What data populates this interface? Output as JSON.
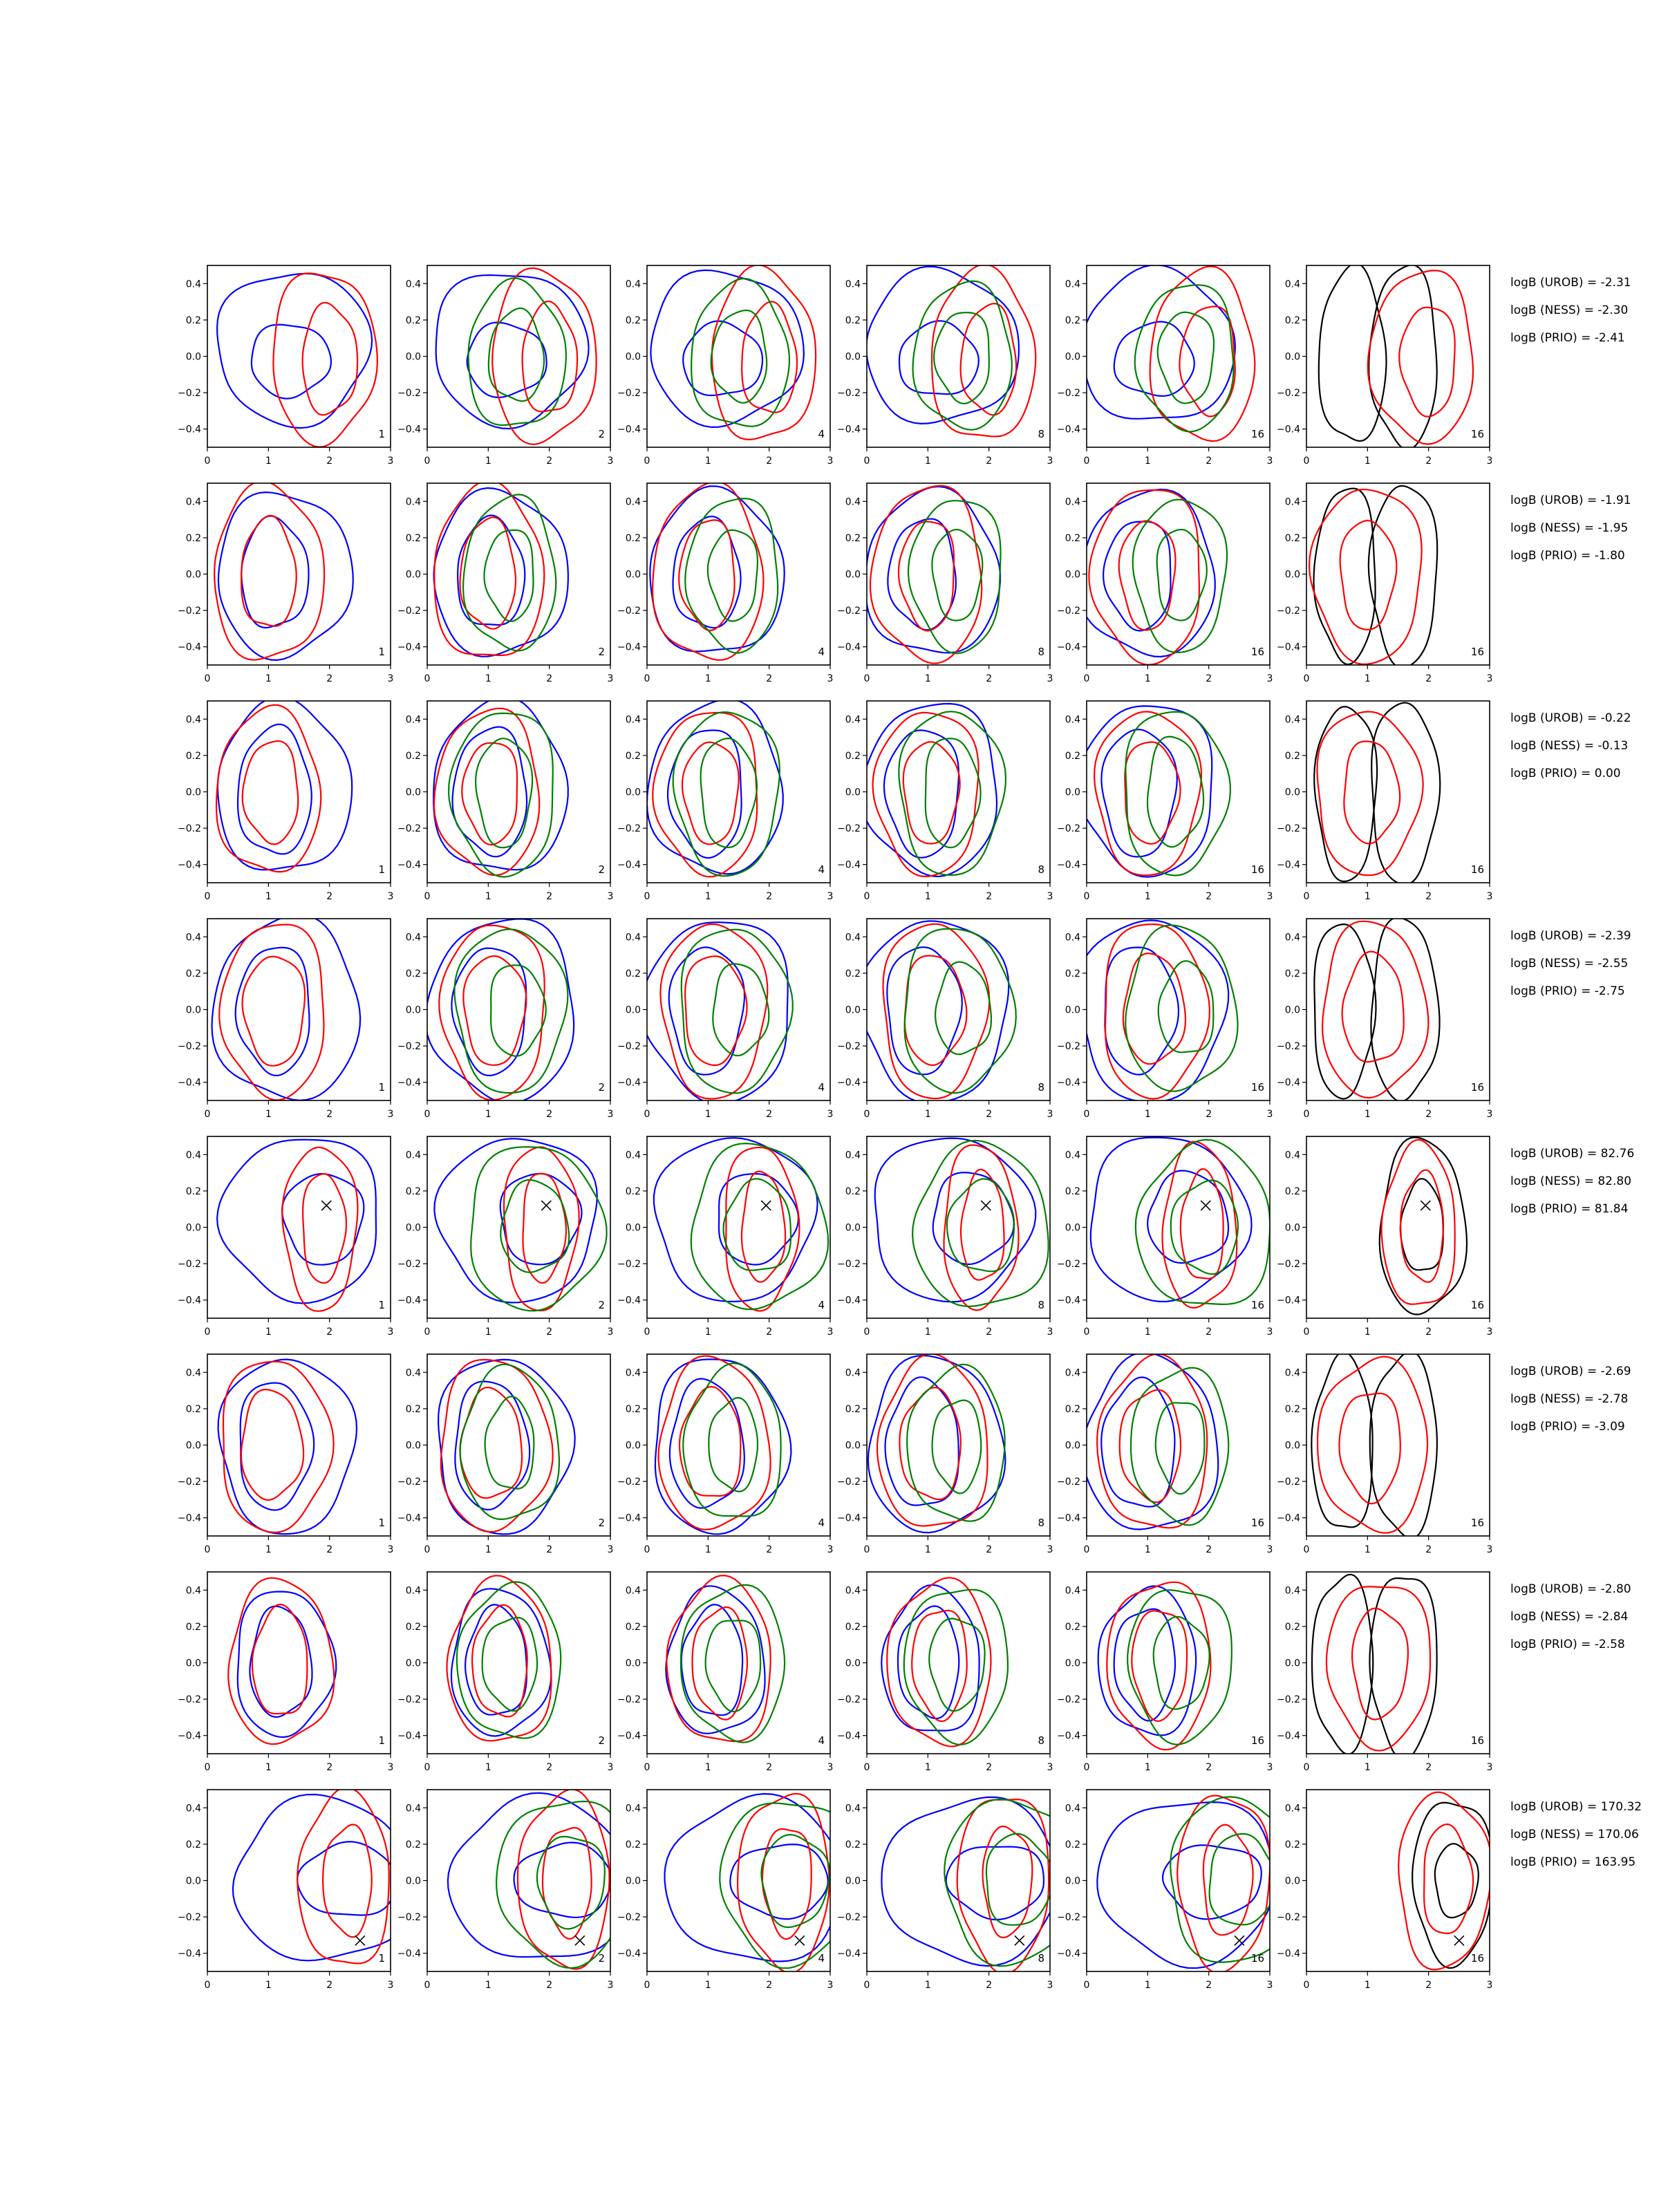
{
  "chart_data": {
    "type": "contour",
    "xlim": [
      0,
      3
    ],
    "ylim": [
      -0.5,
      0.5
    ],
    "x_ticks": [
      "0",
      "1",
      "2",
      "3"
    ],
    "y_ticks": [
      "−0.4",
      "−0.2",
      "0.0",
      "0.2",
      "0.4"
    ],
    "x_tick_values": [
      0,
      1,
      2,
      3
    ],
    "y_tick_values": [
      -0.4,
      -0.2,
      0.0,
      0.2,
      0.4
    ],
    "column_labels": [
      "1",
      "2",
      "4",
      "8",
      "16",
      "16"
    ],
    "colors": {
      "blue": "#0000ff",
      "red": "#ff0000",
      "green": "#008000",
      "black": "#000000"
    },
    "column_series": [
      [
        "blue",
        "red"
      ],
      [
        "blue",
        "red",
        "green"
      ],
      [
        "blue",
        "red",
        "green"
      ],
      [
        "blue",
        "red",
        "green"
      ],
      [
        "blue",
        "red",
        "green"
      ],
      [
        "black",
        "red"
      ]
    ],
    "rows": [
      {
        "stats": [
          "logB (UROB) = -2.31",
          "logB (NESS) = -2.30",
          "logB (PRIO) = -2.41"
        ],
        "contours": {
          "blue": [
            [
              1.4,
              0.05,
              1.25,
              0.42
            ],
            [
              1.35,
              -0.02,
              0.65,
              0.2
            ]
          ],
          "red": [
            [
              1.9,
              0.0,
              0.85,
              0.47
            ],
            [
              2.0,
              -0.02,
              0.45,
              0.3
            ]
          ],
          "green": [
            [
              1.4,
              0.0,
              0.8,
              0.4
            ],
            [
              1.4,
              0.0,
              0.45,
              0.25
            ]
          ],
          "black": [
            [
              0.75,
              0.0,
              0.55,
              0.48
            ],
            [
              1.6,
              0.0,
              0.55,
              0.5
            ]
          ]
        }
      },
      {
        "stats": [
          "logB (UROB) = -1.91",
          "logB (NESS) = -1.95",
          "logB (PRIO) = -1.80"
        ],
        "contours": {
          "blue": [
            [
              1.25,
              0.0,
              1.1,
              0.45
            ],
            [
              1.1,
              0.0,
              0.55,
              0.3
            ]
          ],
          "red": [
            [
              1.0,
              0.0,
              0.9,
              0.48
            ],
            [
              1.0,
              0.0,
              0.45,
              0.3
            ]
          ],
          "green": [
            [
              1.3,
              0.0,
              0.75,
              0.42
            ],
            [
              1.3,
              0.0,
              0.4,
              0.25
            ]
          ],
          "black": [
            [
              0.65,
              0.0,
              0.5,
              0.48
            ],
            [
              1.6,
              0.0,
              0.55,
              0.5
            ]
          ]
        }
      },
      {
        "stats": [
          "logB (UROB) = -0.22",
          "logB (NESS) = -0.13",
          "logB (PRIO) = 0.00"
        ],
        "contours": {
          "blue": [
            [
              1.25,
              0.02,
              1.1,
              0.47
            ],
            [
              1.1,
              0.0,
              0.6,
              0.35
            ]
          ],
          "red": [
            [
              1.0,
              0.0,
              0.85,
              0.45
            ],
            [
              1.05,
              0.0,
              0.45,
              0.28
            ]
          ],
          "green": [
            [
              1.2,
              0.0,
              0.85,
              0.45
            ],
            [
              1.2,
              0.0,
              0.45,
              0.3
            ]
          ],
          "black": [
            [
              0.65,
              0.0,
              0.5,
              0.48
            ],
            [
              1.6,
              0.0,
              0.55,
              0.5
            ]
          ]
        }
      },
      {
        "stats": [
          "logB (UROB) = -2.39",
          "logB (NESS) = -2.55",
          "logB (PRIO) = -2.75"
        ],
        "contours": {
          "blue": [
            [
              1.3,
              0.0,
              1.2,
              0.5
            ],
            [
              1.1,
              0.0,
              0.6,
              0.35
            ]
          ],
          "red": [
            [
              1.1,
              0.0,
              0.85,
              0.48
            ],
            [
              1.1,
              0.0,
              0.5,
              0.3
            ]
          ],
          "green": [
            [
              1.3,
              0.0,
              0.9,
              0.45
            ],
            [
              1.4,
              0.0,
              0.45,
              0.25
            ]
          ],
          "black": [
            [
              0.6,
              0.0,
              0.5,
              0.48
            ],
            [
              1.6,
              0.0,
              0.55,
              0.5
            ]
          ]
        }
      },
      {
        "stats": [
          "logB (UROB) = 82.76",
          "logB (NESS) = 82.80",
          "logB (PRIO) = 81.84"
        ],
        "marker": [
          1.95,
          0.12
        ],
        "contours": {
          "blue": [
            [
              1.55,
              0.05,
              1.3,
              0.45
            ],
            [
              1.9,
              0.05,
              0.65,
              0.25
            ]
          ],
          "red": [
            [
              1.85,
              0.0,
              0.6,
              0.45
            ],
            [
              1.9,
              0.0,
              0.35,
              0.3
            ]
          ],
          "green": [
            [
              1.7,
              0.0,
              1.1,
              0.45
            ],
            [
              1.7,
              0.0,
              0.55,
              0.25
            ]
          ],
          "black": [
            [
              1.9,
              0.0,
              0.7,
              0.48
            ],
            [
              1.9,
              0.0,
              0.35,
              0.25
            ]
          ]
        }
      },
      {
        "stats": [
          "logB (UROB) = -2.69",
          "logB (NESS) = -2.78",
          "logB (PRIO) = -3.09"
        ],
        "contours": {
          "blue": [
            [
              1.3,
              0.0,
              1.1,
              0.48
            ],
            [
              1.1,
              0.0,
              0.6,
              0.35
            ]
          ],
          "red": [
            [
              1.1,
              0.0,
              0.9,
              0.47
            ],
            [
              1.05,
              0.0,
              0.5,
              0.3
            ]
          ],
          "green": [
            [
              1.3,
              0.0,
              0.8,
              0.42
            ],
            [
              1.3,
              0.0,
              0.4,
              0.25
            ]
          ],
          "black": [
            [
              0.6,
              0.0,
              0.5,
              0.48
            ],
            [
              1.6,
              0.0,
              0.55,
              0.5
            ]
          ]
        }
      },
      {
        "stats": [
          "logB (UROB) = -2.80",
          "logB (NESS) = -2.84",
          "logB (PRIO) = -2.58"
        ],
        "contours": {
          "blue": [
            [
              1.25,
              0.0,
              0.8,
              0.4
            ],
            [
              1.2,
              0.0,
              0.5,
              0.3
            ]
          ],
          "red": [
            [
              1.2,
              0.0,
              0.85,
              0.45
            ],
            [
              1.2,
              0.0,
              0.45,
              0.3
            ]
          ],
          "green": [
            [
              1.3,
              0.0,
              0.85,
              0.42
            ],
            [
              1.3,
              0.0,
              0.45,
              0.25
            ]
          ],
          "black": [
            [
              0.6,
              0.0,
              0.5,
              0.48
            ],
            [
              1.6,
              0.0,
              0.55,
              0.5
            ]
          ]
        }
      },
      {
        "stats": [
          "logB (UROB) = 170.32",
          "logB (NESS) = 170.06",
          "logB (PRIO) = 163.95"
        ],
        "marker": [
          2.5,
          -0.33
        ],
        "contours": {
          "blue": [
            [
              1.9,
              0.0,
              1.45,
              0.45
            ],
            [
              2.3,
              0.0,
              0.8,
              0.2
            ]
          ],
          "red": [
            [
              2.25,
              0.0,
              0.75,
              0.48
            ],
            [
              2.3,
              0.0,
              0.4,
              0.3
            ]
          ],
          "green": [
            [
              2.2,
              0.0,
              1.1,
              0.45
            ],
            [
              2.3,
              0.0,
              0.55,
              0.25
            ]
          ],
          "black": [
            [
              2.4,
              0.0,
              0.65,
              0.45
            ],
            [
              2.45,
              0.0,
              0.35,
              0.2
            ]
          ]
        }
      }
    ]
  }
}
